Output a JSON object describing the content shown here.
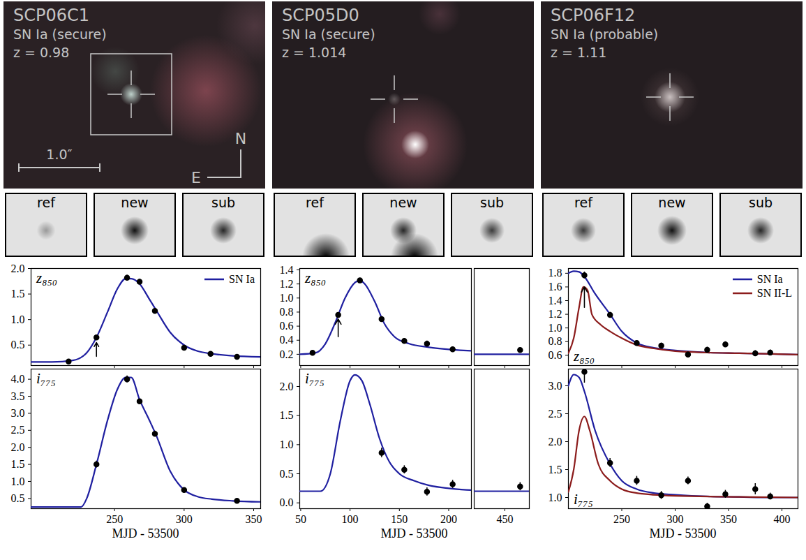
{
  "images": [
    {
      "name": "SCP06C1",
      "class": "SN Ia (secure)",
      "redshift": "z = 0.98",
      "scale_bar": "1.0″",
      "compass": [
        "N",
        "E"
      ],
      "cutouts": [
        "ref",
        "new",
        "sub"
      ]
    },
    {
      "name": "SCP05D0",
      "class": "SN Ia (secure)",
      "redshift": "z = 1.014",
      "cutouts": [
        "ref",
        "new",
        "sub"
      ]
    },
    {
      "name": "SCP06F12",
      "class": "SN Ia (probable)",
      "redshift": "z = 1.11",
      "cutouts": [
        "ref",
        "new",
        "sub"
      ]
    }
  ],
  "chart_data": [
    {
      "type": "scatter",
      "xlabel": "MJD - 53500",
      "xlim": [
        190,
        355
      ],
      "xticks": [
        250,
        300,
        350
      ],
      "legend": "top-right",
      "panels": [
        {
          "label": "z₈₅₀",
          "tick_labels": "y",
          "ylim": [
            0.1,
            2.0
          ],
          "yticks": [
            0.5,
            {
              "value": 1,
              "label": "1.0"
            },
            1.5,
            {
              "value": 2,
              "label": "2.0"
            }
          ],
          "x": [
            217,
            237,
            259,
            268,
            279,
            300,
            319,
            338
          ],
          "values": [
            0.18,
            0.65,
            1.82,
            1.74,
            1.17,
            0.45,
            0.33,
            0.27
          ],
          "errors": [
            0.04,
            0.04,
            0.05,
            0.05,
            0.04,
            0.04,
            0.03,
            0.03
          ],
          "arrow": {
            "x": 237,
            "y": [
              0.28,
              0.55
            ]
          },
          "series": [
            {
              "name": "SN Ia",
              "color": "#1f1fa0",
              "x": [
                190,
                205,
                220,
                230,
                237,
                245,
                252,
                258,
                262,
                268,
                275,
                280,
                290,
                300,
                310,
                320,
                335,
                355
              ],
              "values": [
                0.17,
                0.17,
                0.2,
                0.35,
                0.65,
                1.15,
                1.6,
                1.8,
                1.8,
                1.7,
                1.4,
                1.18,
                0.75,
                0.5,
                0.38,
                0.33,
                0.29,
                0.27
              ]
            }
          ]
        },
        {
          "label": "i₇₇₅",
          "ylim": [
            0.2,
            4.3
          ],
          "yticks": [
            0.5,
            {
              "value": 1,
              "label": "1.0"
            },
            1.5,
            {
              "value": 2,
              "label": "2.0"
            },
            2.5,
            {
              "value": 3,
              "label": "3.0"
            },
            3.5,
            {
              "value": 4,
              "label": "4.0"
            }
          ],
          "x": [
            237,
            259,
            268,
            279,
            300,
            338
          ],
          "values": [
            1.5,
            4,
            3.35,
            2.4,
            0.75,
            0.43
          ],
          "errors": [
            0.1,
            0.1,
            0.07,
            0.08,
            0.05,
            0.05
          ],
          "series": [
            {
              "name": "SN Ia",
              "color": "#1f1fa0",
              "x": [
                190,
                205,
                226,
                230,
                237,
                245,
                252,
                258,
                262,
                268,
                275,
                280,
                290,
                300,
                310,
                320,
                335,
                355
              ],
              "values": [
                0.25,
                0.25,
                0.25,
                0.5,
                1.5,
                2.8,
                3.7,
                4.05,
                4.05,
                3.4,
                2.8,
                2.35,
                1.3,
                0.75,
                0.55,
                0.48,
                0.43,
                0.4
              ]
            }
          ]
        }
      ]
    },
    {
      "type": "scatter",
      "xlabel": "MJD - 53500",
      "xlim": [
        49,
        223
      ],
      "xticks": [
        50,
        100,
        150,
        200
      ],
      "broken_xlim": [
        420,
        474
      ],
      "broken_xticks": [
        450
      ],
      "panels": [
        {
          "label": "z₈₅₀",
          "tick_labels": "y",
          "ylim": [
            0.04,
            1.42
          ],
          "yticks": [
            0.2,
            0.4,
            0.6,
            0.8,
            {
              "value": 1,
              "label": "1.0"
            },
            1.2,
            1.4
          ],
          "x": [
            62,
            88,
            110,
            132,
            155,
            178,
            204,
            465
          ],
          "values": [
            0.22,
            0.76,
            1.25,
            0.7,
            0.39,
            0.35,
            0.27,
            0.26
          ],
          "errors": [
            0.03,
            0.03,
            0.03,
            0.03,
            0.03,
            0.04,
            0.03,
            0.03
          ],
          "arrow": {
            "x": 88,
            "y": [
              0.45,
              0.7
            ]
          },
          "series": [
            {
              "name": "SN Ia",
              "color": "#1f1fa0",
              "x": [
                49,
                65,
                75,
                85,
                95,
                105,
                110,
                115,
                125,
                135,
                145,
                160,
                180,
                200,
                223,
                420,
                474
              ],
              "values": [
                0.2,
                0.22,
                0.35,
                0.65,
                1.0,
                1.22,
                1.25,
                1.2,
                0.95,
                0.63,
                0.45,
                0.35,
                0.3,
                0.27,
                0.25,
                0.2,
                0.2
              ]
            }
          ]
        },
        {
          "label": "i₇₇₅",
          "ylim": [
            -0.1,
            2.3
          ],
          "yticks": [
            {
              "value": 0,
              "label": "0.0"
            },
            0.5,
            {
              "value": 1,
              "label": "1.0"
            },
            1.5,
            {
              "value": 2,
              "label": "2.0"
            }
          ],
          "x": [
            132,
            155,
            178,
            204,
            465
          ],
          "values": [
            0.86,
            0.57,
            0.19,
            0.32,
            0.28
          ],
          "errors": [
            0.08,
            0.07,
            0.07,
            0.07,
            0.07
          ],
          "series": [
            {
              "name": "SN Ia",
              "color": "#1f1fa0",
              "x": [
                49,
                70,
                80,
                90,
                100,
                105,
                112,
                120,
                130,
                140,
                150,
                165,
                180,
                200,
                223,
                420,
                474
              ],
              "values": [
                0.2,
                0.2,
                0.5,
                1.4,
                2.1,
                2.2,
                2.1,
                1.7,
                1.1,
                0.7,
                0.5,
                0.38,
                0.3,
                0.25,
                0.22,
                0.2,
                0.2
              ]
            }
          ]
        }
      ]
    },
    {
      "type": "scatter",
      "xlabel": "MJD - 53500",
      "xlim": [
        200,
        415
      ],
      "xticks": [
        250,
        300,
        350,
        400
      ],
      "legend": "top-right",
      "panels": [
        {
          "label": "z₈₅₀",
          "tick_labels": "y",
          "ylim": [
            0.45,
            1.87
          ],
          "yticks": [
            0.6,
            0.8,
            {
              "value": 1,
              "label": "1.0"
            },
            1.2,
            1.4,
            1.6,
            1.8
          ],
          "x": [
            215,
            239,
            264,
            287,
            312,
            330,
            347,
            375,
            389
          ],
          "values": [
            1.77,
            1.19,
            0.78,
            0.74,
            0.61,
            0.68,
            0.76,
            0.63,
            0.64
          ],
          "errors": [
            0.05,
            0.04,
            0.03,
            0.04,
            0.04,
            0.04,
            0.04,
            0.04,
            0.04
          ],
          "arrow": {
            "x": 215,
            "y": [
              1.3,
              1.6
            ]
          },
          "series": [
            {
              "name": "SN Ia",
              "color": "#1f1fa0",
              "x": [
                200,
                205,
                210,
                215,
                225,
                239,
                250,
                264,
                280,
                300,
                330,
                360,
                390,
                415
              ],
              "values": [
                1.8,
                1.83,
                1.82,
                1.75,
                1.5,
                1.2,
                0.95,
                0.78,
                0.71,
                0.67,
                0.64,
                0.63,
                0.62,
                0.61
              ]
            },
            {
              "name": "SN II-L",
              "color": "#8c1c1c",
              "x": [
                200,
                205,
                210,
                214,
                218,
                222,
                230,
                239,
                250,
                264,
                280,
                300,
                330,
                360,
                390,
                415
              ],
              "values": [
                0.63,
                0.85,
                1.3,
                1.6,
                1.55,
                1.2,
                1.05,
                0.95,
                0.85,
                0.75,
                0.7,
                0.66,
                0.64,
                0.63,
                0.62,
                0.61
              ]
            }
          ]
        },
        {
          "label": "i₇₇₅",
          "ylim": [
            0.8,
            3.3
          ],
          "yticks": [
            {
              "value": 1,
              "label": "1.0"
            },
            1.5,
            {
              "value": 2,
              "label": "2.0"
            },
            2.5,
            {
              "value": 3,
              "label": "3.0"
            }
          ],
          "x": [
            215,
            239,
            264,
            287,
            312,
            330,
            347,
            375,
            389
          ],
          "values": [
            3.25,
            1.62,
            1.3,
            1.04,
            1.3,
            0.84,
            1.06,
            1.15,
            1.02
          ],
          "errors": [
            0.2,
            0.08,
            0.08,
            0.07,
            0.07,
            0.06,
            0.07,
            0.1,
            0.06
          ],
          "series": [
            {
              "name": "SN Ia",
              "color": "#1f1fa0",
              "x": [
                200,
                205,
                210,
                215,
                225,
                239,
                250,
                264,
                280,
                300,
                330,
                360,
                390,
                415
              ],
              "values": [
                3.0,
                3.2,
                3.15,
                2.9,
                2.2,
                1.6,
                1.3,
                1.15,
                1.08,
                1.05,
                1.02,
                1.01,
                1.0,
                1.0
              ]
            },
            {
              "name": "SN II-L",
              "color": "#8c1c1c",
              "x": [
                200,
                205,
                210,
                215,
                220,
                228,
                239,
                250,
                264,
                300,
                360,
                415
              ],
              "values": [
                1.1,
                1.5,
                2.2,
                2.45,
                2.2,
                1.6,
                1.3,
                1.15,
                1.08,
                1.03,
                1.01,
                1.0
              ]
            }
          ]
        }
      ]
    }
  ]
}
